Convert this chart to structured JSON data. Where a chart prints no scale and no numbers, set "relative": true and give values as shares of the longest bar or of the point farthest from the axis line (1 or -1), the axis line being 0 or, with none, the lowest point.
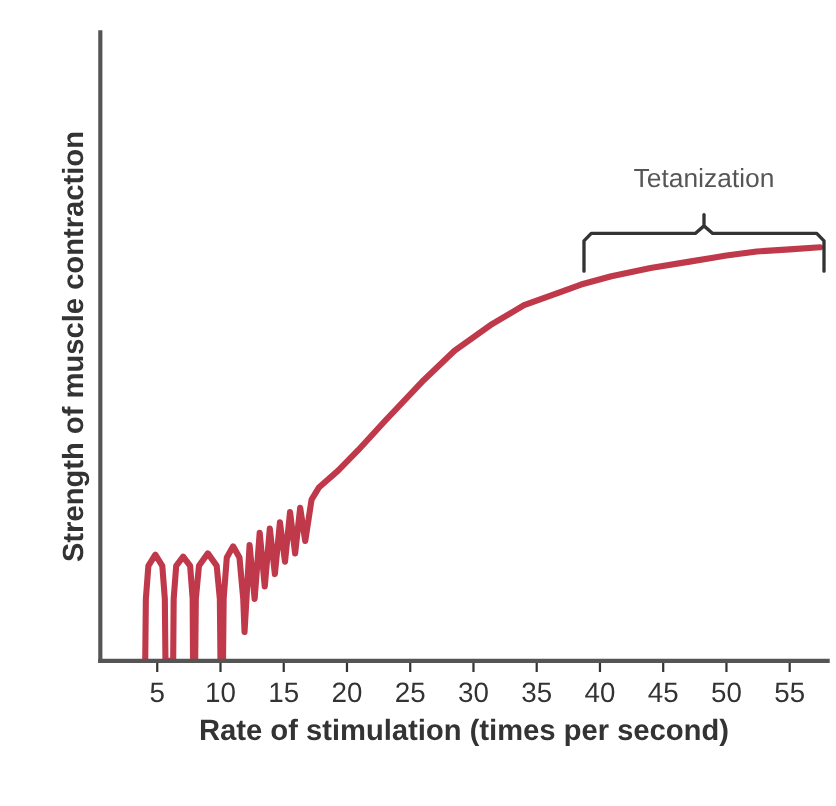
{
  "chart_data": {
    "type": "line",
    "relative": true,
    "xlabel": "Rate of stimulation (times per second)",
    "ylabel": "Strength of muscle contraction",
    "xlim": [
      0.5,
      58
    ],
    "xticks": [
      5,
      10,
      15,
      20,
      25,
      30,
      35,
      40,
      45,
      50,
      55
    ],
    "grid": false,
    "legend": false,
    "marker": "none",
    "line_style": "solid",
    "annotations": [
      "Tetanization"
    ],
    "series": [
      {
        "color": "#c0394b",
        "x": [
          4.05,
          4.1,
          4.3,
          4.85,
          5.4,
          5.6,
          5.65,
          6.26,
          6.3,
          6.5,
          7.05,
          7.6,
          7.8,
          7.83,
          8.0,
          8.05,
          8.3,
          9.0,
          9.7,
          9.95,
          10.0,
          10.2,
          10.25,
          10.5,
          11.0,
          11.5,
          11.8,
          11.9,
          12.3,
          12.7,
          13.1,
          13.5,
          13.9,
          14.3,
          14.7,
          15.1,
          15.5,
          15.9,
          16.3,
          16.7,
          17.2,
          17.8,
          19.3,
          20.9,
          23.0,
          26.1,
          28.5,
          31.5,
          34.0,
          36.7,
          38.5,
          40.9,
          44.0,
          47.2,
          50.0,
          52.4,
          55.0,
          57.4
        ],
        "values": [
          0,
          0.15,
          0.23,
          0.257,
          0.23,
          0.15,
          0,
          0,
          0.15,
          0.23,
          0.252,
          0.23,
          0.15,
          0,
          0,
          0.15,
          0.23,
          0.26,
          0.23,
          0.15,
          0,
          0,
          0.15,
          0.25,
          0.277,
          0.25,
          0.15,
          0.07,
          0.28,
          0.15,
          0.31,
          0.18,
          0.32,
          0.21,
          0.335,
          0.24,
          0.36,
          0.26,
          0.37,
          0.29,
          0.39,
          0.42,
          0.46,
          0.51,
          0.58,
          0.68,
          0.75,
          0.815,
          0.86,
          0.89,
          0.91,
          0.93,
          0.95,
          0.966,
          0.98,
          0.99,
          0.995,
          1.0
        ]
      }
    ]
  }
}
